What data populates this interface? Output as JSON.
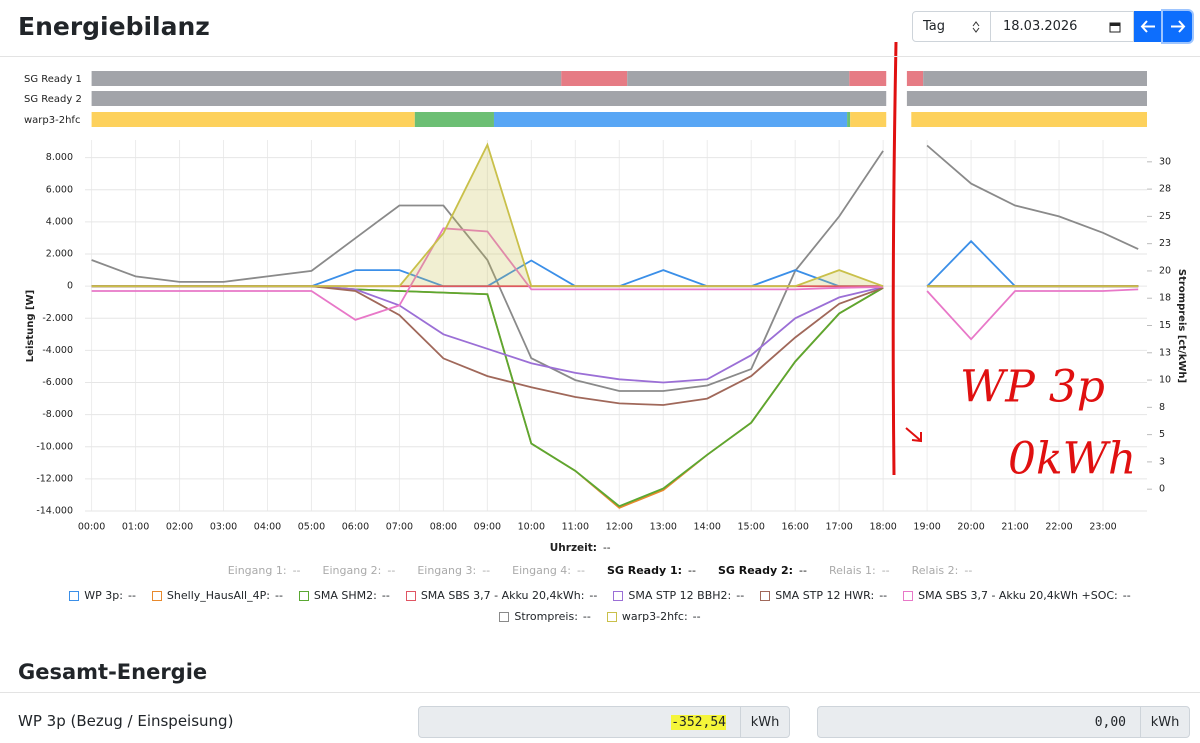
{
  "header": {
    "title": "Energiebilanz",
    "period": "Tag",
    "date": "18.03.2026"
  },
  "status_rows": [
    {
      "label": "SG Ready 1",
      "segments": [
        {
          "start": 0,
          "end": 10.68,
          "color": "#a2a4a9"
        },
        {
          "start": 10.68,
          "end": 12.18,
          "color": "#e67b84"
        },
        {
          "start": 12.18,
          "end": 17.23,
          "color": "#a2a4a9"
        },
        {
          "start": 17.23,
          "end": 18.07,
          "color": "#e67b84"
        },
        {
          "start": 18.54,
          "end": 18.91,
          "color": "#e67b84"
        },
        {
          "start": 18.91,
          "end": 24,
          "color": "#a2a4a9"
        }
      ]
    },
    {
      "label": "SG Ready 2",
      "segments": [
        {
          "start": 0,
          "end": 18.07,
          "color": "#a2a4a9"
        },
        {
          "start": 18.54,
          "end": 24,
          "color": "#a2a4a9"
        }
      ]
    },
    {
      "label": "warp3-2hfc",
      "segments": [
        {
          "start": 0,
          "end": 7.35,
          "color": "#fdd15c"
        },
        {
          "start": 7.35,
          "end": 9.15,
          "color": "#6cbf74"
        },
        {
          "start": 9.15,
          "end": 17.18,
          "color": "#58a6f5"
        },
        {
          "start": 17.18,
          "end": 17.25,
          "color": "#6cbf74"
        },
        {
          "start": 17.25,
          "end": 18.07,
          "color": "#fdd15c"
        },
        {
          "start": 18.64,
          "end": 24,
          "color": "#fdd15c"
        }
      ]
    }
  ],
  "chart_data": {
    "type": "line",
    "x": [
      0,
      1,
      2,
      3,
      4,
      5,
      6,
      7,
      8,
      9,
      10,
      11,
      12,
      13,
      14,
      15,
      16,
      17,
      18,
      18.4,
      19,
      20,
      21,
      22,
      23,
      23.8
    ],
    "xlim": [
      -0.15,
      24
    ],
    "xticks": [
      {
        "value": 0,
        "label": "00:00"
      },
      {
        "value": 1,
        "label": "01:00"
      },
      {
        "value": 2,
        "label": "02:00"
      },
      {
        "value": 3,
        "label": "03:00"
      },
      {
        "value": 4,
        "label": "04:00"
      },
      {
        "value": 5,
        "label": "05:00"
      },
      {
        "value": 6,
        "label": "06:00"
      },
      {
        "value": 7,
        "label": "07:00"
      },
      {
        "value": 8,
        "label": "08:00"
      },
      {
        "value": 9,
        "label": "09:00"
      },
      {
        "value": 10,
        "label": "10:00"
      },
      {
        "value": 11,
        "label": "11:00"
      },
      {
        "value": 12,
        "label": "12:00"
      },
      {
        "value": 13,
        "label": "13:00"
      },
      {
        "value": 14,
        "label": "14:00"
      },
      {
        "value": 15,
        "label": "15:00"
      },
      {
        "value": 16,
        "label": "16:00"
      },
      {
        "value": 17,
        "label": "17:00"
      },
      {
        "value": 18,
        "label": "18:00"
      },
      {
        "value": 19,
        "label": "19:00"
      },
      {
        "value": 20,
        "label": "20:00"
      },
      {
        "value": 21,
        "label": "21:00"
      },
      {
        "value": 22,
        "label": "22:00"
      },
      {
        "value": 23,
        "label": "23:00"
      }
    ],
    "ylim": [
      -14000,
      9100
    ],
    "yticks": [
      {
        "value": 8000,
        "label": "8.000"
      },
      {
        "value": 6000,
        "label": "6.000"
      },
      {
        "value": 4000,
        "label": "4.000"
      },
      {
        "value": 2000,
        "label": "2.000"
      },
      0,
      {
        "value": -2000,
        "label": "-2.000"
      },
      {
        "value": -4000,
        "label": "-4.000"
      },
      {
        "value": -6000,
        "label": "-6.000"
      },
      {
        "value": -8000,
        "label": "-8.000"
      },
      {
        "value": -10000,
        "label": "-10.000"
      },
      {
        "value": -12000,
        "label": "-12.000"
      },
      {
        "value": -14000,
        "label": "-14.000"
      }
    ],
    "y2lim": [
      -2,
      32
    ],
    "y2ticks": [
      30,
      {
        "value": 27.5,
        "label": "28"
      },
      25,
      {
        "value": 22.5,
        "label": "23"
      },
      20,
      {
        "value": 17.5,
        "label": "18"
      },
      15,
      {
        "value": 12.5,
        "label": "13"
      },
      10,
      {
        "value": 7.5,
        "label": "8"
      },
      5,
      {
        "value": 2.5,
        "label": "3"
      },
      0
    ],
    "grid": true,
    "x_label": "Uhrzeit:",
    "x_readout": "--",
    "y_label": "Leistung [W]",
    "y2_label": "Strompreis [ct/kWh]",
    "series": [
      {
        "name": "WP 3p:",
        "readout": "--",
        "color": "#3b8fe8",
        "values": [
          0,
          0,
          0,
          0,
          0,
          0,
          1000,
          1000,
          0,
          0,
          1600,
          0,
          0,
          1000,
          0,
          0,
          1000,
          0,
          0,
          null,
          0,
          2800,
          0,
          0,
          0,
          0
        ]
      },
      {
        "name": "Shelly_HausAll_4P:",
        "readout": "--",
        "color": "#e8892c",
        "values": [
          0,
          0,
          0,
          0,
          0,
          0,
          -200,
          -300,
          -400,
          -500,
          -9800,
          -11500,
          -13800,
          -12700,
          -10500,
          -8500,
          -4700,
          -1700,
          -100,
          null,
          0,
          0,
          0,
          0,
          0,
          0
        ]
      },
      {
        "name": "SMA SHM2:",
        "readout": "--",
        "color": "#5aa832",
        "values": [
          0,
          0,
          0,
          0,
          0,
          0,
          -200,
          -300,
          -400,
          -500,
          -9800,
          -11500,
          -13700,
          -12600,
          -10500,
          -8500,
          -4700,
          -1700,
          -100,
          null,
          0,
          0,
          0,
          0,
          0,
          0
        ]
      },
      {
        "name": "SMA SBS 3,7 - Akku 20,4kWh:",
        "readout": "--",
        "color": "#e05563",
        "values": [
          0,
          0,
          0,
          0,
          0,
          0,
          0,
          0,
          0,
          0,
          0,
          0,
          0,
          0,
          0,
          0,
          0,
          0,
          0,
          null,
          0,
          0,
          0,
          0,
          0,
          0
        ]
      },
      {
        "name": "SMA STP 12 BBH2:",
        "readout": "--",
        "color": "#9b6fd6",
        "values": [
          0,
          0,
          0,
          0,
          0,
          0,
          -200,
          -1200,
          -3000,
          -3900,
          -4800,
          -5400,
          -5800,
          -6000,
          -5800,
          -4300,
          -2000,
          -700,
          -50,
          null,
          0,
          0,
          0,
          0,
          0,
          0
        ]
      },
      {
        "name": "SMA STP 12 HWR:",
        "readout": "--",
        "color": "#a0685a",
        "values": [
          0,
          0,
          0,
          0,
          0,
          0,
          -300,
          -1800,
          -4500,
          -5600,
          -6300,
          -6900,
          -7300,
          -7400,
          -7000,
          -5600,
          -3200,
          -1100,
          -100,
          null,
          0,
          0,
          0,
          0,
          0,
          0
        ]
      },
      {
        "name": "SMA SBS 3,7 - Akku 20,4kWh +SOC:",
        "readout": "--",
        "color": "#e878c8",
        "values": [
          -300,
          -300,
          -300,
          -300,
          -300,
          -300,
          -2100,
          -1200,
          3600,
          3400,
          -200,
          -200,
          -200,
          -200,
          -200,
          -200,
          -200,
          -100,
          -50,
          null,
          -300,
          -3300,
          -300,
          -300,
          -300,
          -200
        ]
      },
      {
        "name": "Strompreis:",
        "readout": "--",
        "color": "#8a8a8a",
        "axis": "y2",
        "values": [
          21,
          19.5,
          19,
          19,
          19.5,
          20,
          23,
          26,
          26,
          21,
          12,
          10,
          9,
          9,
          9.5,
          11,
          20,
          25,
          31,
          null,
          31.5,
          28,
          26,
          25,
          23.5,
          22
        ]
      },
      {
        "name": "warp3-2hfc:",
        "readout": "--",
        "color": "#c9c04a",
        "fill": true,
        "values": [
          0,
          0,
          0,
          0,
          0,
          0,
          0,
          0,
          3300,
          8800,
          0,
          0,
          0,
          0,
          0,
          0,
          0,
          1000,
          0,
          null,
          0,
          0,
          0,
          0,
          0,
          0
        ]
      }
    ],
    "annotations": [
      "WP 3p",
      "0kWh"
    ]
  },
  "inputs": [
    {
      "label": "Eingang 1:",
      "value": "--",
      "active": false
    },
    {
      "label": "Eingang 2:",
      "value": "--",
      "active": false
    },
    {
      "label": "Eingang 3:",
      "value": "--",
      "active": false
    },
    {
      "label": "Eingang 4:",
      "value": "--",
      "active": false
    },
    {
      "label": "SG Ready 1:",
      "value": "--",
      "active": true
    },
    {
      "label": "SG Ready 2:",
      "value": "--",
      "active": true
    },
    {
      "label": "Relais 1:",
      "value": "--",
      "active": false
    },
    {
      "label": "Relais 2:",
      "value": "--",
      "active": false
    }
  ],
  "summary": {
    "title": "Gesamt-Energie",
    "rows": [
      {
        "label": "WP 3p (Bezug / Einspeisung)",
        "import": "-352,54",
        "import_unit": "kWh",
        "export": "0,00",
        "export_unit": "kWh"
      }
    ]
  }
}
